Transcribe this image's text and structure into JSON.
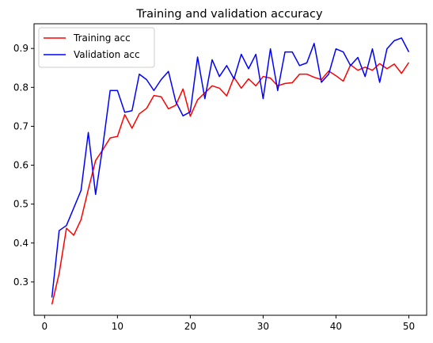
{
  "chart_data": {
    "type": "line",
    "title": "Training and validation accuracy",
    "xlabel": "",
    "ylabel": "",
    "xlim": [
      -1.45,
      52.45
    ],
    "ylim": [
      0.2143,
      0.9635
    ],
    "xticks": [
      0,
      10,
      20,
      30,
      40,
      50
    ],
    "yticks": [
      0.3,
      0.4,
      0.5,
      0.6,
      0.7,
      0.8,
      0.9
    ],
    "grid": false,
    "legend_position": "top-left",
    "x": [
      1,
      2,
      3,
      4,
      5,
      6,
      7,
      8,
      9,
      10,
      11,
      12,
      13,
      14,
      15,
      16,
      17,
      18,
      19,
      20,
      21,
      22,
      23,
      24,
      25,
      26,
      27,
      28,
      29,
      30,
      31,
      32,
      33,
      34,
      35,
      36,
      37,
      38,
      39,
      40,
      41,
      42,
      43,
      44,
      45,
      46,
      47,
      48,
      49,
      50
    ],
    "series": [
      {
        "name": "Training acc",
        "color": "#ff0000",
        "values": [
          0.242,
          0.322,
          0.438,
          0.42,
          0.46,
          0.538,
          0.612,
          0.64,
          0.67,
          0.674,
          0.73,
          0.695,
          0.732,
          0.746,
          0.779,
          0.776,
          0.745,
          0.754,
          0.796,
          0.726,
          0.768,
          0.786,
          0.804,
          0.798,
          0.778,
          0.826,
          0.798,
          0.822,
          0.804,
          0.828,
          0.824,
          0.804,
          0.81,
          0.812,
          0.834,
          0.834,
          0.826,
          0.82,
          0.842,
          0.83,
          0.816,
          0.858,
          0.844,
          0.852,
          0.844,
          0.861,
          0.848,
          0.86,
          0.836,
          0.864
        ]
      },
      {
        "name": "Validation acc",
        "color": "#0000ff",
        "values": [
          0.26,
          0.432,
          0.445,
          0.49,
          0.535,
          0.684,
          0.525,
          0.65,
          0.792,
          0.792,
          0.736,
          0.74,
          0.834,
          0.82,
          0.792,
          0.82,
          0.841,
          0.764,
          0.727,
          0.737,
          0.878,
          0.771,
          0.871,
          0.828,
          0.856,
          0.822,
          0.885,
          0.848,
          0.885,
          0.771,
          0.899,
          0.792,
          0.891,
          0.891,
          0.856,
          0.863,
          0.913,
          0.813,
          0.834,
          0.899,
          0.891,
          0.856,
          0.877,
          0.828,
          0.899,
          0.813,
          0.899,
          0.92,
          0.927,
          0.891
        ]
      }
    ]
  }
}
